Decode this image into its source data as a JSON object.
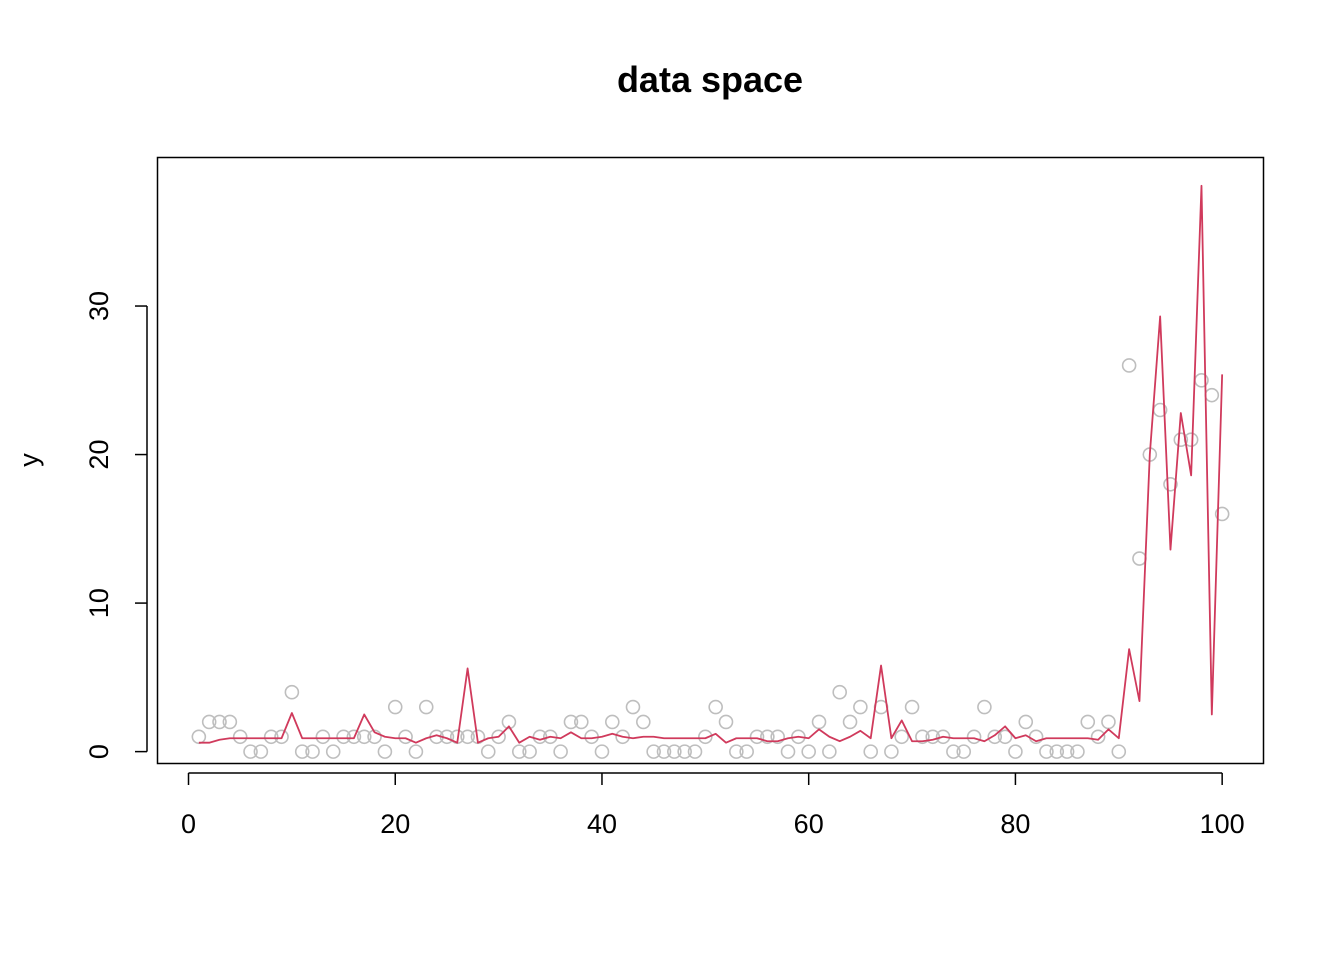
{
  "chart_data": {
    "type": "scatter",
    "title": "data space",
    "xlabel": "",
    "ylabel": "y",
    "xlim": [
      -3,
      104
    ],
    "ylim": [
      -0.8,
      40
    ],
    "xticks": [
      0,
      20,
      40,
      60,
      80,
      100
    ],
    "xtick_labels": [
      "0",
      "20",
      "40",
      "60",
      "80",
      "100"
    ],
    "yticks": [
      0,
      10,
      20,
      30
    ],
    "ytick_labels": [
      "0",
      "10",
      "20",
      "30"
    ],
    "grid": false,
    "legend": "none",
    "colors": {
      "points": "#bebebe",
      "line": "#d03a5c",
      "frame": "#000000"
    },
    "series": [
      {
        "style": "points",
        "x": [
          1,
          2,
          3,
          4,
          5,
          6,
          7,
          8,
          9,
          10,
          11,
          12,
          13,
          14,
          15,
          16,
          17,
          18,
          19,
          20,
          21,
          22,
          23,
          24,
          25,
          26,
          27,
          28,
          29,
          30,
          31,
          32,
          33,
          34,
          35,
          36,
          37,
          38,
          39,
          40,
          41,
          42,
          43,
          44,
          45,
          46,
          47,
          48,
          49,
          50,
          51,
          52,
          53,
          54,
          55,
          56,
          57,
          58,
          59,
          60,
          61,
          62,
          63,
          64,
          65,
          66,
          67,
          68,
          69,
          70,
          71,
          72,
          73,
          74,
          75,
          76,
          77,
          78,
          79,
          80,
          81,
          82,
          83,
          84,
          85,
          86,
          87,
          88,
          89,
          90,
          91,
          92,
          93,
          94,
          95,
          96,
          97,
          98,
          99,
          100
        ],
        "y": [
          1,
          2,
          2,
          2,
          1,
          0,
          0,
          1,
          1,
          4,
          0,
          0,
          1,
          0,
          1,
          1,
          1,
          1,
          0,
          3,
          1,
          0,
          3,
          1,
          1,
          1,
          1,
          1,
          0,
          1,
          2,
          0,
          0,
          1,
          1,
          0,
          2,
          2,
          1,
          0,
          2,
          1,
          3,
          2,
          0,
          0,
          0,
          0,
          0,
          1,
          3,
          2,
          0,
          0,
          1,
          1,
          1,
          0,
          1,
          0,
          2,
          0,
          4,
          2,
          3,
          0,
          3,
          0,
          1,
          3,
          1,
          1,
          1,
          0,
          0,
          1,
          3,
          1,
          1,
          0,
          2,
          1,
          0,
          0,
          0,
          0,
          2,
          1,
          2,
          0,
          26,
          13,
          20,
          23,
          18,
          21,
          21,
          25,
          24,
          16
        ]
      },
      {
        "style": "line",
        "x": [
          1,
          2,
          3,
          4,
          5,
          6,
          7,
          8,
          9,
          10,
          11,
          12,
          13,
          14,
          15,
          16,
          17,
          18,
          19,
          20,
          21,
          22,
          23,
          24,
          25,
          26,
          27,
          28,
          29,
          30,
          31,
          32,
          33,
          34,
          35,
          36,
          37,
          38,
          39,
          40,
          41,
          42,
          43,
          44,
          45,
          46,
          47,
          48,
          49,
          50,
          51,
          52,
          53,
          54,
          55,
          56,
          57,
          58,
          59,
          60,
          61,
          62,
          63,
          64,
          65,
          66,
          67,
          68,
          69,
          70,
          71,
          72,
          73,
          74,
          75,
          76,
          77,
          78,
          79,
          80,
          81,
          82,
          83,
          84,
          85,
          86,
          87,
          88,
          89,
          90,
          91,
          92,
          93,
          94,
          95,
          96,
          97,
          98,
          99,
          100
        ],
        "y": [
          0.6,
          0.6,
          0.8,
          0.9,
          0.9,
          0.9,
          0.9,
          0.9,
          0.9,
          2.6,
          0.9,
          0.9,
          0.9,
          0.9,
          0.9,
          0.9,
          2.5,
          1.3,
          1.0,
          0.9,
          0.9,
          0.6,
          0.9,
          1.1,
          0.9,
          0.6,
          5.6,
          0.6,
          0.9,
          1.0,
          1.7,
          0.6,
          1.0,
          0.8,
          1.0,
          0.9,
          1.3,
          0.9,
          0.9,
          1.0,
          1.2,
          1.0,
          0.9,
          1.0,
          1.0,
          0.9,
          0.9,
          0.9,
          0.9,
          0.9,
          1.2,
          0.6,
          0.9,
          0.9,
          0.9,
          0.7,
          0.7,
          0.9,
          1.0,
          0.9,
          1.5,
          1.0,
          0.7,
          1.0,
          1.4,
          0.9,
          5.8,
          0.9,
          2.1,
          0.7,
          0.7,
          0.8,
          1.0,
          0.9,
          0.9,
          0.9,
          0.7,
          1.1,
          1.7,
          0.9,
          1.1,
          0.7,
          0.9,
          0.9,
          0.9,
          0.9,
          0.9,
          0.8,
          1.5,
          0.9,
          6.9,
          3.4,
          20.0,
          29.3,
          13.6,
          22.8,
          18.6,
          38.1,
          2.5,
          25.4
        ]
      }
    ]
  }
}
